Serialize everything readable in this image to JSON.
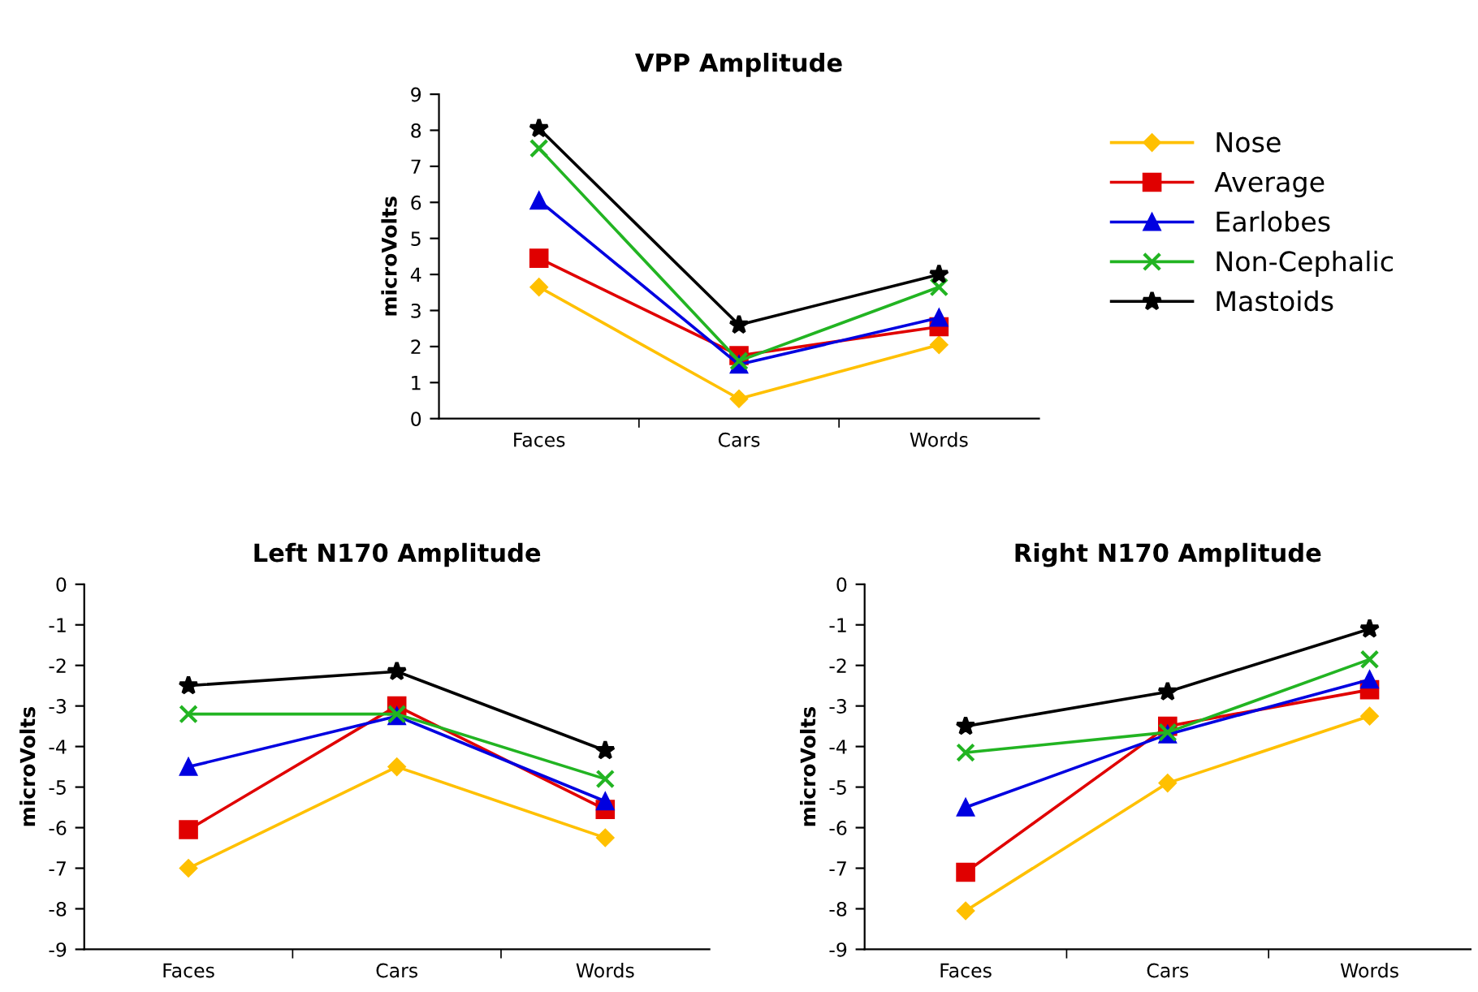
{
  "chart_data": [
    {
      "type": "line",
      "title": "VPP Amplitude",
      "ylabel": "microVolts",
      "categories": [
        "Faces",
        "Cars",
        "Words"
      ],
      "ylim": [
        0,
        9
      ],
      "yticks": [
        0,
        1,
        2,
        3,
        4,
        5,
        6,
        7,
        8,
        9
      ],
      "grid": false,
      "legend": "right",
      "series": [
        {
          "name": "Nose",
          "color": "#ffc000",
          "marker": "diamond",
          "values": [
            3.65,
            0.55,
            2.05
          ]
        },
        {
          "name": "Average",
          "color": "#e00000",
          "marker": "square",
          "values": [
            4.45,
            1.75,
            2.55
          ]
        },
        {
          "name": "Earlobes",
          "color": "#0000e0",
          "marker": "triangle",
          "values": [
            6.05,
            1.5,
            2.8
          ]
        },
        {
          "name": "Non-Cephalic",
          "color": "#22b422",
          "marker": "cross",
          "values": [
            7.5,
            1.6,
            3.65
          ]
        },
        {
          "name": "Mastoids",
          "color": "#000000",
          "marker": "star",
          "values": [
            8.05,
            2.6,
            4.0
          ]
        }
      ]
    },
    {
      "type": "line",
      "title": "Left N170 Amplitude",
      "ylabel": "microVolts",
      "categories": [
        "Faces",
        "Cars",
        "Words"
      ],
      "ylim": [
        -9,
        0
      ],
      "yticks": [
        -9,
        -8,
        -7,
        -6,
        -5,
        -4,
        -3,
        -2,
        -1,
        0
      ],
      "grid": false,
      "series": [
        {
          "color": "#ffc000",
          "marker": "diamond",
          "values": [
            -7.0,
            -4.5,
            -6.25
          ]
        },
        {
          "color": "#e00000",
          "marker": "square",
          "values": [
            -6.05,
            -3.0,
            -5.55
          ]
        },
        {
          "color": "#0000e0",
          "marker": "triangle",
          "values": [
            -4.5,
            -3.25,
            -5.35
          ]
        },
        {
          "color": "#22b422",
          "marker": "cross",
          "values": [
            -3.2,
            -3.2,
            -4.8
          ]
        },
        {
          "color": "#000000",
          "marker": "star",
          "values": [
            -2.5,
            -2.15,
            -4.1
          ]
        }
      ]
    },
    {
      "type": "line",
      "title": "Right N170 Amplitude",
      "ylabel": "microVolts",
      "categories": [
        "Faces",
        "Cars",
        "Words"
      ],
      "ylim": [
        -9,
        0
      ],
      "yticks": [
        -9,
        -8,
        -7,
        -6,
        -5,
        -4,
        -3,
        -2,
        -1,
        0
      ],
      "grid": false,
      "series": [
        {
          "color": "#ffc000",
          "marker": "diamond",
          "values": [
            -8.05,
            -4.9,
            -3.25
          ]
        },
        {
          "color": "#e00000",
          "marker": "square",
          "values": [
            -7.1,
            -3.5,
            -2.6
          ]
        },
        {
          "color": "#0000e0",
          "marker": "triangle",
          "values": [
            -5.5,
            -3.7,
            -2.35
          ]
        },
        {
          "color": "#22b422",
          "marker": "cross",
          "values": [
            -4.15,
            -3.65,
            -1.85
          ]
        },
        {
          "color": "#000000",
          "marker": "star",
          "values": [
            -3.5,
            -2.65,
            -1.1
          ]
        }
      ]
    }
  ]
}
